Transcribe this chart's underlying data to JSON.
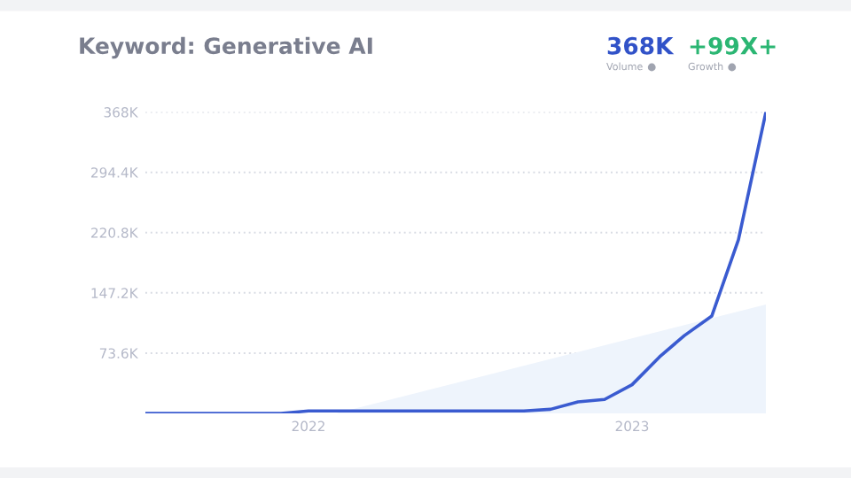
{
  "chart_data": {
    "type": "line",
    "title": "Keyword: Generative AI",
    "annotations": [
      "368K",
      "Volume",
      "+99X+",
      "Growth"
    ],
    "x": [
      "2021-07",
      "2021-08",
      "2021-09",
      "2021-10",
      "2021-11",
      "2021-12",
      "2022-01",
      "2022-02",
      "2022-03",
      "2022-04",
      "2022-05",
      "2022-06",
      "2022-07",
      "2022-08",
      "2022-09",
      "2022-10",
      "2022-11",
      "2022-12",
      "2023-01",
      "2023-02",
      "2023-03",
      "2023-04",
      "2023-05",
      "2023-06"
    ],
    "series": [
      {
        "color": "#3a5bd0",
        "values": [
          0,
          0,
          0,
          0,
          0,
          0,
          3000,
          3000,
          3000,
          3000,
          3000,
          3000,
          3000,
          3000,
          3000,
          5000,
          14000,
          17000,
          35000,
          69000,
          95000,
          119000,
          212000,
          368000
        ]
      },
      {
        "type": "area",
        "color": "#eef4fc",
        "x": [
          "2022-02",
          "2023-06"
        ],
        "values": [
          0,
          133000
        ]
      }
    ],
    "xlim": [
      "2021-07",
      "2023-06"
    ],
    "ylim": [
      0,
      368000
    ],
    "xticks": [
      {
        "value": "2022-01",
        "label": "2022"
      },
      {
        "value": "2023-01",
        "label": "2023"
      }
    ],
    "yticks": [
      {
        "value": 73600,
        "label": "73.6K"
      },
      {
        "value": 147200,
        "label": "147.2K"
      },
      {
        "value": 220800,
        "label": "220.8K"
      },
      {
        "value": 294400,
        "label": "294.4K"
      },
      {
        "value": 368000,
        "label": "368K"
      }
    ],
    "grid": "y",
    "line_style": "solid",
    "marker": "none",
    "legend": false
  }
}
